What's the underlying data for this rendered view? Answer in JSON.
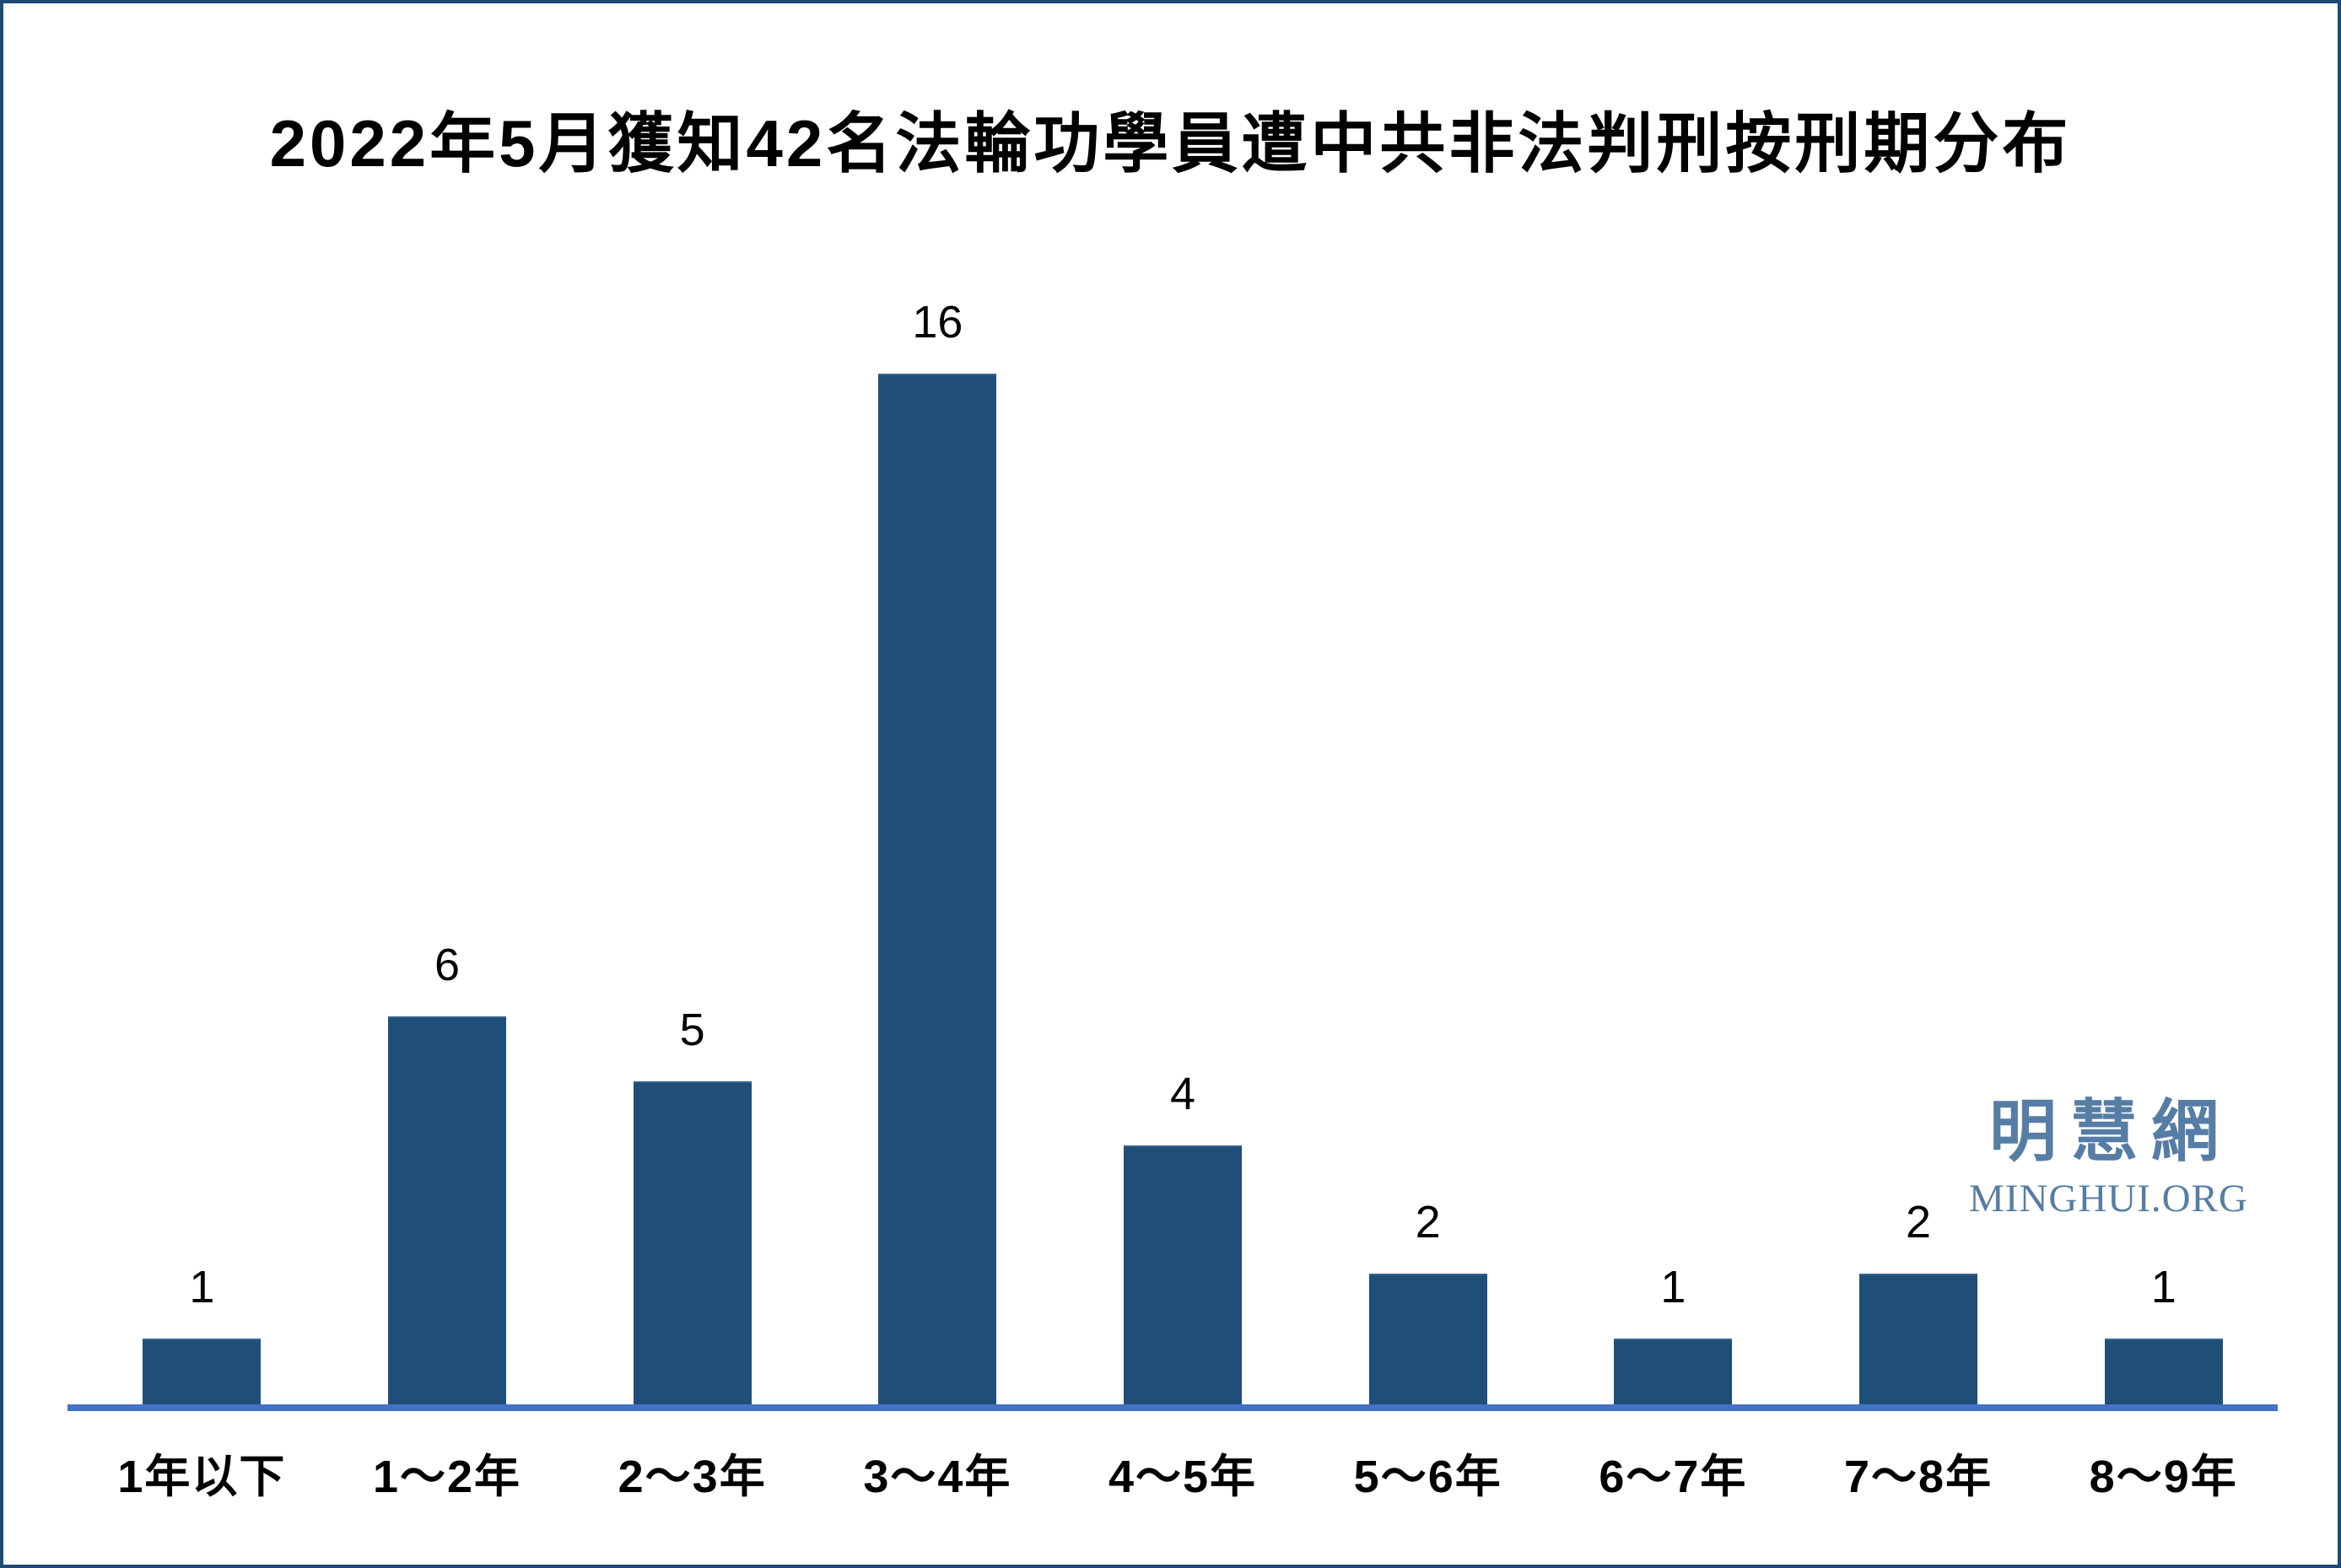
{
  "title": "2022年5月獲知42名法輪功學員遭中共非法判刑按刑期分布",
  "watermark": {
    "cjk": "明慧網",
    "latin": "MINGHUI.ORG"
  },
  "colors": {
    "bar": "#1F4E79",
    "axis_line": "#4472C4",
    "page_border": "#1E4B74",
    "watermark": "#567DA5",
    "background": "#FFFFFF",
    "text": "#000000"
  },
  "chart_data": {
    "type": "bar",
    "title": "2022年5月獲知42名法輪功學員遭中共非法判刑按刑期分布",
    "categories": [
      "1年以下",
      "1～2年",
      "2～3年",
      "3～4年",
      "4～5年",
      "5～6年",
      "6～7年",
      "7～8年",
      "8～9年"
    ],
    "values": [
      1,
      6,
      5,
      16,
      4,
      2,
      1,
      2,
      1
    ],
    "xlabel": "",
    "ylabel": "",
    "ylim": [
      0,
      16
    ],
    "grid": false,
    "legend": false,
    "y_axis_shown": false,
    "data_labels": true,
    "bar_color": "#1F4E79",
    "axis_color": "#4472C4"
  }
}
